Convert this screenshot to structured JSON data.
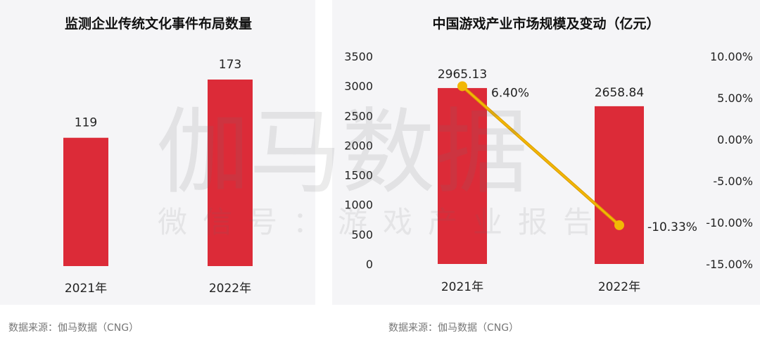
{
  "colors": {
    "bar": "#dc2b38",
    "line": "#f2b705",
    "panel_bg": "#f5f5f7"
  },
  "watermark": {
    "main": "伽马数据",
    "sub": "微信号：游戏产业报告"
  },
  "chart_data": [
    {
      "type": "bar",
      "title": "监测企业传统文化事件布局数量",
      "categories": [
        "2021年",
        "2022年"
      ],
      "values": [
        119,
        173
      ],
      "data_labels": [
        "119",
        "173"
      ],
      "source": "数据来源：伽马数据（CNG）",
      "ylim": [
        0,
        173
      ]
    },
    {
      "type": "bar+line",
      "title": "中国游戏产业市场规模及变动（亿元）",
      "categories": [
        "2021年",
        "2022年"
      ],
      "series": [
        {
          "type": "bar",
          "axis": "left",
          "values": [
            2965.13,
            2658.84
          ],
          "data_labels": [
            "2965.13",
            "2658.84"
          ]
        },
        {
          "type": "line",
          "axis": "right",
          "values": [
            6.4,
            -10.33
          ],
          "data_labels": [
            "6.40%",
            "-10.33%"
          ]
        }
      ],
      "y_left": {
        "range": [
          0,
          3500
        ],
        "ticks": [
          "0",
          "500",
          "1000",
          "1500",
          "2000",
          "2500",
          "3000",
          "3500"
        ]
      },
      "y_right": {
        "range": [
          -15,
          10
        ],
        "ticks": [
          "-15.00%",
          "-10.00%",
          "-5.00%",
          "0.00%",
          "5.00%",
          "10.00%"
        ]
      },
      "source": "数据来源：伽马数据（CNG）"
    }
  ]
}
